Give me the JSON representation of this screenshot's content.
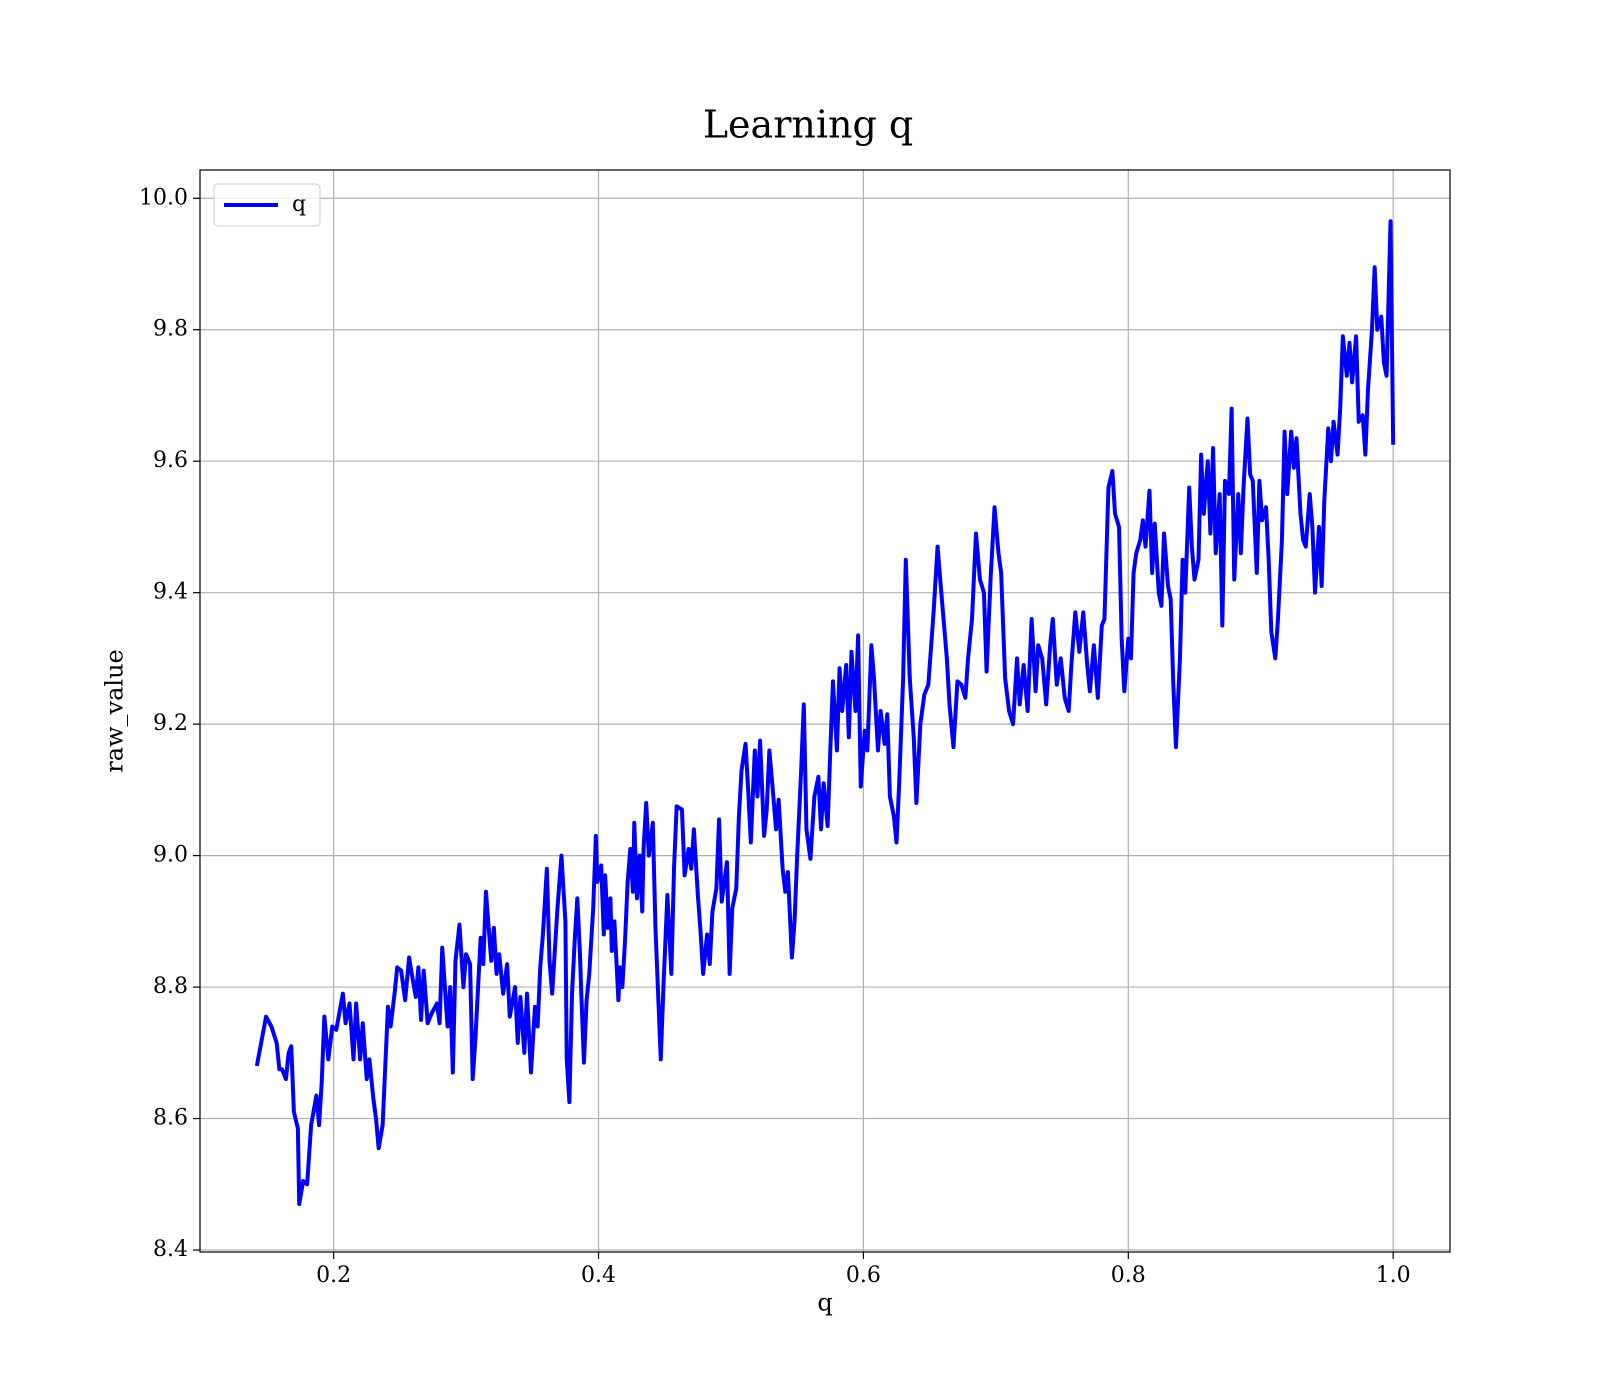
{
  "chart_data": {
    "type": "line",
    "title": "Learning q",
    "xlabel": "q",
    "ylabel": "raw_value",
    "x": [
      0.142,
      0.149,
      0.153,
      0.157,
      0.159,
      0.161,
      0.164,
      0.166,
      0.168,
      0.17,
      0.173,
      0.174,
      0.177,
      0.18,
      0.183,
      0.187,
      0.189,
      0.191,
      0.193,
      0.196,
      0.199,
      0.202,
      0.207,
      0.209,
      0.212,
      0.215,
      0.217,
      0.22,
      0.222,
      0.225,
      0.227,
      0.23,
      0.232,
      0.234,
      0.237,
      0.239,
      0.241,
      0.243,
      0.246,
      0.248,
      0.251,
      0.254,
      0.257,
      0.259,
      0.262,
      0.264,
      0.266,
      0.268,
      0.271,
      0.274,
      0.278,
      0.28,
      0.282,
      0.286,
      0.288,
      0.29,
      0.292,
      0.295,
      0.298,
      0.3,
      0.303,
      0.305,
      0.307,
      0.311,
      0.313,
      0.315,
      0.319,
      0.321,
      0.323,
      0.325,
      0.328,
      0.331,
      0.333,
      0.337,
      0.339,
      0.341,
      0.344,
      0.346,
      0.349,
      0.352,
      0.354,
      0.356,
      0.358,
      0.361,
      0.363,
      0.365,
      0.369,
      0.372,
      0.375,
      0.376,
      0.378,
      0.38,
      0.382,
      0.384,
      0.386,
      0.387,
      0.389,
      0.391,
      0.393,
      0.396,
      0.398,
      0.399,
      0.402,
      0.404,
      0.405,
      0.407,
      0.409,
      0.41,
      0.412,
      0.415,
      0.416,
      0.418,
      0.42,
      0.422,
      0.424,
      0.426,
      0.427,
      0.429,
      0.431,
      0.433,
      0.434,
      0.436,
      0.438,
      0.441,
      0.443,
      0.447,
      0.449,
      0.452,
      0.455,
      0.457,
      0.459,
      0.463,
      0.465,
      0.468,
      0.47,
      0.472,
      0.475,
      0.477,
      0.479,
      0.482,
      0.484,
      0.486,
      0.489,
      0.491,
      0.493,
      0.497,
      0.499,
      0.501,
      0.504,
      0.506,
      0.508,
      0.511,
      0.513,
      0.515,
      0.518,
      0.52,
      0.522,
      0.525,
      0.527,
      0.529,
      0.532,
      0.534,
      0.536,
      0.539,
      0.541,
      0.543,
      0.546,
      0.548,
      0.55,
      0.553,
      0.555,
      0.557,
      0.56,
      0.563,
      0.566,
      0.568,
      0.57,
      0.573,
      0.575,
      0.577,
      0.58,
      0.582,
      0.584,
      0.587,
      0.589,
      0.591,
      0.594,
      0.596,
      0.598,
      0.601,
      0.603,
      0.606,
      0.608,
      0.611,
      0.613,
      0.616,
      0.618,
      0.62,
      0.623,
      0.625,
      0.627,
      0.63,
      0.632,
      0.635,
      0.638,
      0.64,
      0.643,
      0.646,
      0.649,
      0.653,
      0.656,
      0.658,
      0.663,
      0.665,
      0.668,
      0.671,
      0.674,
      0.677,
      0.679,
      0.682,
      0.685,
      0.688,
      0.691,
      0.693,
      0.696,
      0.699,
      0.702,
      0.704,
      0.707,
      0.71,
      0.713,
      0.716,
      0.718,
      0.721,
      0.724,
      0.727,
      0.73,
      0.732,
      0.735,
      0.738,
      0.741,
      0.743,
      0.746,
      0.749,
      0.752,
      0.755,
      0.757,
      0.76,
      0.763,
      0.766,
      0.769,
      0.771,
      0.774,
      0.777,
      0.78,
      0.782,
      0.785,
      0.788,
      0.79,
      0.793,
      0.795,
      0.797,
      0.8,
      0.802,
      0.804,
      0.806,
      0.809,
      0.811,
      0.813,
      0.816,
      0.818,
      0.82,
      0.823,
      0.825,
      0.827,
      0.83,
      0.832,
      0.834,
      0.836,
      0.839,
      0.841,
      0.843,
      0.846,
      0.848,
      0.85,
      0.853,
      0.855,
      0.857,
      0.86,
      0.862,
      0.864,
      0.866,
      0.869,
      0.871,
      0.873,
      0.876,
      0.878,
      0.88,
      0.883,
      0.885,
      0.887,
      0.89,
      0.892,
      0.894,
      0.897,
      0.899,
      0.901,
      0.904,
      0.906,
      0.908,
      0.911,
      0.913,
      0.916,
      0.918,
      0.92,
      0.923,
      0.925,
      0.927,
      0.93,
      0.932,
      0.934,
      0.937,
      0.939,
      0.941,
      0.944,
      0.946,
      0.948,
      0.951,
      0.953,
      0.955,
      0.958,
      0.96,
      0.962,
      0.965,
      0.967,
      0.969,
      0.972,
      0.974,
      0.977,
      0.979,
      0.981,
      0.984,
      0.986,
      0.988,
      0.991,
      0.993,
      0.995,
      0.998,
      1.0
    ],
    "series": [
      {
        "name": "q",
        "color": "#0000ff",
        "values": [
          8.68,
          8.755,
          8.74,
          8.715,
          8.675,
          8.675,
          8.66,
          8.7,
          8.71,
          8.61,
          8.585,
          8.47,
          8.505,
          8.5,
          8.59,
          8.635,
          8.59,
          8.655,
          8.755,
          8.69,
          8.74,
          8.735,
          8.79,
          8.745,
          8.775,
          8.69,
          8.775,
          8.69,
          8.745,
          8.66,
          8.69,
          8.63,
          8.6,
          8.555,
          8.59,
          8.68,
          8.77,
          8.74,
          8.79,
          8.83,
          8.825,
          8.78,
          8.845,
          8.82,
          8.785,
          8.83,
          8.75,
          8.825,
          8.745,
          8.76,
          8.775,
          8.745,
          8.86,
          8.74,
          8.8,
          8.67,
          8.84,
          8.895,
          8.8,
          8.85,
          8.835,
          8.66,
          8.72,
          8.875,
          8.835,
          8.945,
          8.84,
          8.89,
          8.82,
          8.85,
          8.79,
          8.835,
          8.755,
          8.8,
          8.715,
          8.785,
          8.7,
          8.79,
          8.67,
          8.77,
          8.74,
          8.83,
          8.88,
          8.98,
          8.84,
          8.79,
          8.92,
          9.0,
          8.9,
          8.69,
          8.625,
          8.79,
          8.87,
          8.935,
          8.85,
          8.79,
          8.685,
          8.78,
          8.82,
          8.92,
          9.03,
          8.96,
          8.985,
          8.88,
          8.97,
          8.89,
          8.935,
          8.855,
          8.9,
          8.78,
          8.83,
          8.8,
          8.87,
          8.96,
          9.01,
          8.945,
          9.05,
          8.935,
          9.0,
          8.915,
          9.01,
          9.08,
          9.0,
          9.05,
          8.89,
          8.69,
          8.8,
          8.94,
          8.82,
          8.98,
          9.075,
          9.07,
          8.97,
          9.01,
          8.98,
          9.04,
          8.94,
          8.885,
          8.82,
          8.88,
          8.835,
          8.915,
          8.95,
          9.055,
          8.93,
          8.99,
          8.82,
          8.92,
          8.95,
          9.06,
          9.13,
          9.17,
          9.1,
          9.02,
          9.16,
          9.09,
          9.175,
          9.03,
          9.07,
          9.16,
          9.09,
          9.04,
          9.085,
          8.98,
          8.945,
          8.975,
          8.845,
          8.9,
          9.0,
          9.13,
          9.23,
          9.04,
          8.995,
          9.09,
          9.12,
          9.04,
          9.11,
          9.045,
          9.16,
          9.265,
          9.16,
          9.285,
          9.22,
          9.29,
          9.18,
          9.31,
          9.22,
          9.335,
          9.105,
          9.19,
          9.16,
          9.32,
          9.27,
          9.16,
          9.22,
          9.17,
          9.215,
          9.09,
          9.06,
          9.02,
          9.11,
          9.27,
          9.45,
          9.27,
          9.18,
          9.08,
          9.2,
          9.245,
          9.26,
          9.37,
          9.47,
          9.42,
          9.3,
          9.23,
          9.165,
          9.265,
          9.26,
          9.24,
          9.3,
          9.36,
          9.49,
          9.42,
          9.4,
          9.28,
          9.42,
          9.53,
          9.46,
          9.43,
          9.27,
          9.22,
          9.2,
          9.3,
          9.23,
          9.29,
          9.22,
          9.36,
          9.25,
          9.32,
          9.3,
          9.23,
          9.32,
          9.36,
          9.26,
          9.3,
          9.24,
          9.22,
          9.29,
          9.37,
          9.31,
          9.37,
          9.29,
          9.25,
          9.32,
          9.24,
          9.35,
          9.36,
          9.56,
          9.585,
          9.52,
          9.5,
          9.33,
          9.25,
          9.33,
          9.3,
          9.43,
          9.46,
          9.48,
          9.51,
          9.47,
          9.555,
          9.43,
          9.505,
          9.4,
          9.38,
          9.49,
          9.41,
          9.39,
          9.26,
          9.165,
          9.3,
          9.45,
          9.4,
          9.56,
          9.47,
          9.42,
          9.45,
          9.61,
          9.52,
          9.6,
          9.49,
          9.62,
          9.46,
          9.55,
          9.35,
          9.57,
          9.55,
          9.68,
          9.42,
          9.55,
          9.46,
          9.56,
          9.665,
          9.58,
          9.57,
          9.43,
          9.57,
          9.51,
          9.53,
          9.45,
          9.34,
          9.3,
          9.36,
          9.48,
          9.645,
          9.55,
          9.645,
          9.59,
          9.635,
          9.52,
          9.48,
          9.47,
          9.55,
          9.5,
          9.4,
          9.5,
          9.41,
          9.54,
          9.65,
          9.6,
          9.66,
          9.61,
          9.68,
          9.79,
          9.73,
          9.78,
          9.72,
          9.79,
          9.66,
          9.67,
          9.61,
          9.71,
          9.8,
          9.895,
          9.8,
          9.82,
          9.75,
          9.73,
          9.965,
          9.625
        ]
      }
    ],
    "xlim": [
      0.0991,
      1.0429
    ],
    "ylim": [
      8.397,
      10.043
    ],
    "xticks": [
      0.2,
      0.4,
      0.6,
      0.8,
      {
        "value": 1,
        "label": "1.0"
      }
    ],
    "yticks": [
      8.4,
      8.6,
      8.8,
      {
        "value": 9,
        "label": "9.0"
      },
      9.2,
      9.4,
      9.6,
      9.8,
      {
        "value": 10,
        "label": "10.0"
      }
    ],
    "grid": true,
    "legend": "upper left"
  }
}
